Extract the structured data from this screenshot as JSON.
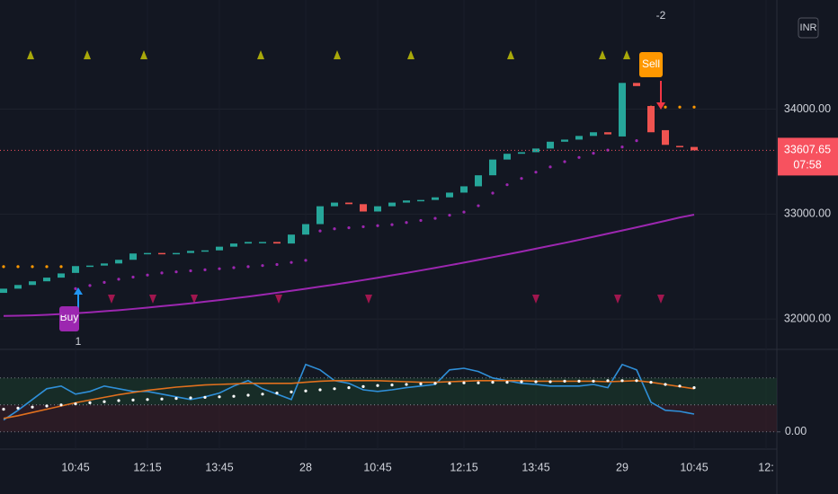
{
  "chart_data": {
    "type": "candlestick",
    "currency": "INR",
    "categories": [
      null,
      null,
      null,
      null,
      null,
      "10:45",
      null,
      null,
      null,
      null,
      "12:15",
      null,
      null,
      null,
      null,
      "13:45",
      null,
      null,
      null,
      null,
      null,
      "28",
      null,
      null,
      null,
      null,
      "10:45",
      null,
      null,
      null,
      null,
      null,
      "12:15",
      null,
      null,
      null,
      null,
      "13:45",
      null,
      null,
      null,
      null,
      null,
      "29",
      null,
      null,
      null,
      null,
      "10:45",
      null,
      null,
      null,
      null,
      "12:"
    ],
    "open": [
      32250,
      32290,
      32325,
      32360,
      32395,
      32440,
      32505,
      32510,
      32530,
      32565,
      32625,
      32630,
      32625,
      32630,
      32650,
      32655,
      32690,
      32720,
      32735,
      32735,
      32720,
      32805,
      32905,
      33075,
      33110,
      33095,
      33025,
      33075,
      33110,
      33130,
      33135,
      33160,
      33205,
      33265,
      33370,
      33520,
      33575,
      33590,
      33625,
      33690,
      33710,
      33745,
      33780,
      33740,
      34250,
      34030,
      33800,
      33650,
      33640,
      null,
      null,
      null,
      null,
      null
    ],
    "close": [
      32290,
      32325,
      32360,
      32395,
      32435,
      32505,
      32510,
      32530,
      32565,
      32625,
      32630,
      32625,
      32630,
      32650,
      32655,
      32690,
      32720,
      32735,
      32735,
      32720,
      32805,
      32905,
      33075,
      33110,
      33095,
      33025,
      33075,
      33110,
      33130,
      33135,
      33160,
      33205,
      33265,
      33370,
      33520,
      33575,
      33590,
      33625,
      33690,
      33710,
      33745,
      33780,
      33760,
      34250,
      34220,
      33780,
      33660,
      33640,
      33607.65,
      null,
      null,
      null,
      null,
      null
    ],
    "colors": {
      "up": "#26a69a",
      "down": "#ef5350"
    },
    "ylim": [
      31720,
      35040
    ],
    "yticks": [
      {
        "value": 32000,
        "label": "32000.00"
      },
      {
        "value": 33000,
        "label": "33000.00"
      },
      {
        "value": 34000,
        "label": "34000.00"
      }
    ],
    "last_price": 33607.65,
    "countdown": "07:58",
    "overlays": [
      {
        "type": "line",
        "color": "#9c27b0",
        "values": [
          32030,
          32032,
          32036,
          32041,
          32048,
          32056,
          32064,
          32075,
          32085,
          32097,
          32109,
          32123,
          32136,
          32150,
          32166,
          32181,
          32198,
          32214,
          32232,
          32251,
          32270,
          32289,
          32309,
          32329,
          32350,
          32372,
          32394,
          32417,
          32440,
          32464,
          32488,
          32513,
          32538,
          32564,
          32590,
          32616,
          32643,
          32671,
          32699,
          32726,
          32755,
          32784,
          32814,
          32844,
          32874,
          32905,
          32936,
          32968,
          32995,
          null,
          null,
          null,
          null,
          null
        ]
      },
      {
        "type": "dots",
        "color_below": "#9c27b0",
        "color_above": "#ff9800",
        "values": [
          32500,
          32500,
          32500,
          32500,
          32500,
          32290,
          32320,
          32350,
          32380,
          32400,
          32420,
          32440,
          32450,
          32460,
          32470,
          32480,
          32490,
          32500,
          32510,
          32520,
          32540,
          32560,
          32840,
          32860,
          32870,
          32880,
          32890,
          32900,
          32920,
          32940,
          32960,
          32990,
          33020,
          33080,
          33200,
          33280,
          33340,
          33400,
          33450,
          33500,
          33540,
          33580,
          33610,
          33640,
          33700,
          34020,
          34020,
          34020,
          34020,
          null,
          null,
          null,
          null,
          null
        ]
      }
    ],
    "signals": {
      "buy": {
        "label": "Buy",
        "qty": 1
      },
      "sell": {
        "label": "Sell",
        "qty": -2
      }
    },
    "oscillator": {
      "ylim": [
        -32,
        148
      ],
      "yticks": [
        {
          "value": 0,
          "label": "0.00"
        }
      ],
      "bands": [
        {
          "from": 50,
          "to": 100,
          "color": "#1b3a2c"
        },
        {
          "from": 0,
          "to": 50,
          "color": "#3a1e28"
        }
      ],
      "series": [
        {
          "type": "line",
          "color": "#2f8fd8",
          "values": [
            22,
            40,
            60,
            80,
            85,
            70,
            75,
            85,
            80,
            75,
            75,
            70,
            65,
            60,
            65,
            72,
            85,
            95,
            80,
            70,
            60,
            125,
            115,
            95,
            90,
            78,
            75,
            78,
            82,
            85,
            88,
            115,
            118,
            112,
            100,
            95,
            90,
            88,
            85,
            85,
            85,
            88,
            82,
            125,
            115,
            55,
            40,
            38,
            33,
            null,
            null,
            null,
            null,
            null
          ]
        },
        {
          "type": "line",
          "color": "#e0701e",
          "values": [
            25,
            30,
            36,
            42,
            48,
            54,
            59,
            64,
            69,
            73,
            77,
            80,
            83,
            85,
            87,
            88,
            89,
            90,
            90,
            90,
            90,
            92,
            94,
            95,
            95,
            95,
            95,
            94,
            93,
            92,
            92,
            93,
            94,
            95,
            95,
            95,
            95,
            94,
            94,
            94,
            94,
            94,
            93,
            94,
            95,
            92,
            88,
            84,
            80,
            null,
            null,
            null,
            null,
            null
          ]
        },
        {
          "type": "dots",
          "color": "#ffffff",
          "values": [
            42,
            44,
            46,
            48,
            50,
            52,
            54,
            56,
            58,
            59,
            60,
            61,
            62,
            63,
            64,
            65,
            66,
            68,
            70,
            72,
            74,
            76,
            78,
            80,
            82,
            84,
            86,
            87,
            88,
            89,
            90,
            90,
            91,
            91,
            92,
            92,
            93,
            93,
            93,
            94,
            94,
            94,
            95,
            95,
            95,
            92,
            88,
            85,
            82,
            null,
            null,
            null,
            null,
            null
          ]
        }
      ]
    }
  }
}
